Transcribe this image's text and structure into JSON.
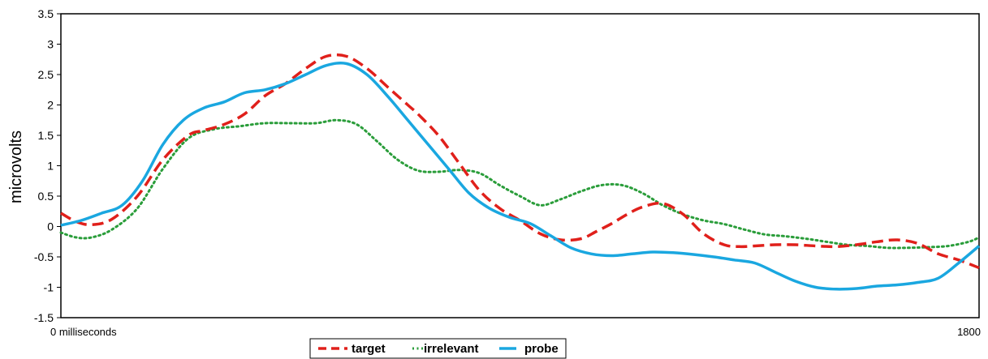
{
  "chart_data": {
    "type": "line",
    "title": "",
    "ylabel": "microvolts",
    "xlabel": "",
    "x_start_label": "0 milliseconds",
    "x_end_label": "1800",
    "xlim": [
      0,
      1800
    ],
    "ylim": [
      -1.5,
      3.5
    ],
    "y_ticks": [
      -1.5,
      -1,
      -0.5,
      0,
      0.5,
      1,
      1.5,
      2,
      2.5,
      3,
      3.5
    ],
    "y_tick_labels": [
      "-1.5",
      "-1",
      "-0.5",
      "0",
      "0.5",
      "1",
      "1.5",
      "2",
      "2.5",
      "3",
      "3.5"
    ],
    "grid": false,
    "legend_position": "bottom",
    "series": [
      {
        "name": "target",
        "color": "#e0201b",
        "style": "dashed",
        "x": [
          0,
          30,
          60,
          100,
          150,
          200,
          250,
          280,
          320,
          360,
          400,
          440,
          480,
          520,
          560,
          600,
          640,
          680,
          700,
          740,
          780,
          820,
          860,
          900,
          940,
          980,
          1020,
          1050,
          1080,
          1110,
          1140,
          1180,
          1220,
          1260,
          1300,
          1330,
          1360,
          1400,
          1440,
          1480,
          1520,
          1560,
          1600,
          1640,
          1680,
          1720,
          1760,
          1800
        ],
        "y": [
          0.22,
          0.08,
          0.03,
          0.12,
          0.5,
          1.1,
          1.5,
          1.58,
          1.68,
          1.85,
          2.15,
          2.35,
          2.6,
          2.8,
          2.8,
          2.6,
          2.3,
          2.0,
          1.85,
          1.5,
          1.05,
          0.6,
          0.3,
          0.1,
          -0.12,
          -0.22,
          -0.2,
          -0.08,
          0.05,
          0.2,
          0.32,
          0.38,
          0.2,
          -0.12,
          -0.3,
          -0.33,
          -0.32,
          -0.3,
          -0.3,
          -0.32,
          -0.33,
          -0.3,
          -0.25,
          -0.22,
          -0.28,
          -0.45,
          -0.55,
          -0.68
        ]
      },
      {
        "name": "irrelevant",
        "color": "#2a9d3a",
        "style": "dotted",
        "x": [
          0,
          30,
          60,
          100,
          150,
          200,
          250,
          300,
          350,
          400,
          450,
          500,
          540,
          580,
          620,
          660,
          700,
          740,
          780,
          820,
          860,
          900,
          940,
          980,
          1020,
          1060,
          1100,
          1140,
          1180,
          1220,
          1260,
          1300,
          1340,
          1380,
          1420,
          1460,
          1500,
          1540,
          1580,
          1620,
          1660,
          1700,
          1740,
          1780,
          1800
        ],
        "y": [
          -0.1,
          -0.18,
          -0.18,
          -0.05,
          0.3,
          0.95,
          1.45,
          1.6,
          1.65,
          1.7,
          1.7,
          1.7,
          1.75,
          1.68,
          1.4,
          1.1,
          0.92,
          0.9,
          0.93,
          0.88,
          0.68,
          0.5,
          0.35,
          0.45,
          0.58,
          0.68,
          0.68,
          0.55,
          0.35,
          0.2,
          0.1,
          0.04,
          -0.05,
          -0.13,
          -0.16,
          -0.2,
          -0.25,
          -0.3,
          -0.32,
          -0.35,
          -0.35,
          -0.34,
          -0.32,
          -0.25,
          -0.18
        ]
      },
      {
        "name": "probe",
        "color": "#1aa7e0",
        "style": "solid",
        "x": [
          0,
          40,
          80,
          120,
          160,
          200,
          240,
          280,
          320,
          360,
          400,
          440,
          480,
          520,
          560,
          600,
          640,
          680,
          720,
          760,
          800,
          840,
          880,
          920,
          960,
          1000,
          1040,
          1080,
          1120,
          1160,
          1200,
          1240,
          1280,
          1320,
          1360,
          1400,
          1440,
          1480,
          1520,
          1560,
          1600,
          1640,
          1680,
          1720,
          1760,
          1800
        ],
        "y": [
          0.02,
          0.1,
          0.22,
          0.35,
          0.75,
          1.35,
          1.75,
          1.95,
          2.05,
          2.2,
          2.25,
          2.35,
          2.5,
          2.65,
          2.68,
          2.5,
          2.15,
          1.75,
          1.35,
          0.95,
          0.55,
          0.3,
          0.15,
          0.05,
          -0.15,
          -0.35,
          -0.45,
          -0.48,
          -0.45,
          -0.42,
          -0.43,
          -0.46,
          -0.5,
          -0.55,
          -0.6,
          -0.75,
          -0.9,
          -1.0,
          -1.03,
          -1.02,
          -0.98,
          -0.96,
          -0.92,
          -0.85,
          -0.6,
          -0.32
        ]
      }
    ]
  }
}
